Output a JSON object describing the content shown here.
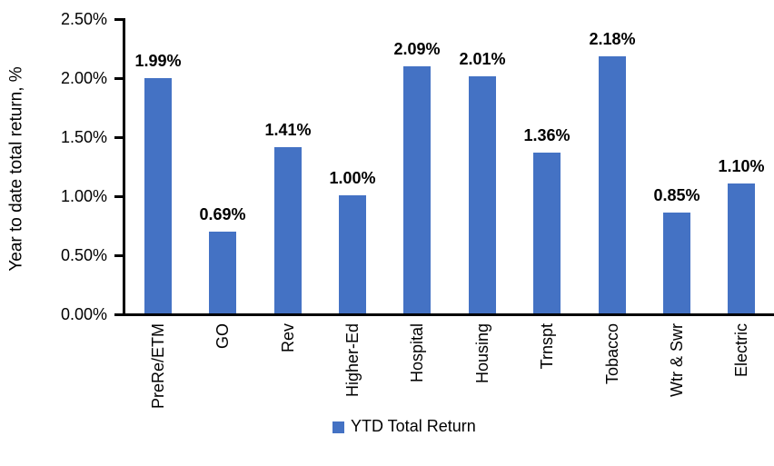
{
  "chart": {
    "ylabel": "Year to date total return, %",
    "legend": "YTD Total Return",
    "bar_color": "#4472C4",
    "axis_color": "#000000",
    "text_color": "#000000"
  },
  "chart_data": {
    "type": "bar",
    "title": "",
    "xlabel": "",
    "ylabel": "Year to date total return, %",
    "categories": [
      "PreRe/ETM",
      "GO",
      "Rev",
      "Higher-Ed",
      "Hospital",
      "Housing",
      "Trnspt",
      "Tobacco",
      "Wtr & Swr",
      "Electric"
    ],
    "series": [
      {
        "name": "YTD Total Return",
        "color": "#4472C4",
        "values": [
          1.99,
          0.69,
          1.41,
          1.0,
          2.09,
          2.01,
          1.36,
          2.18,
          0.85,
          1.1
        ],
        "value_labels": [
          "1.99%",
          "0.69%",
          "1.41%",
          "1.00%",
          "2.09%",
          "2.01%",
          "1.36%",
          "2.18%",
          "0.85%",
          "1.10%"
        ]
      }
    ],
    "ylim": [
      0,
      2.5
    ],
    "ytick_step": 0.5,
    "ytick_labels": [
      "0.00%",
      "0.50%",
      "1.00%",
      "1.50%",
      "2.00%",
      "2.50%"
    ],
    "grid": false,
    "legend_position": "bottom",
    "data_labels": "above-bars, bold"
  }
}
